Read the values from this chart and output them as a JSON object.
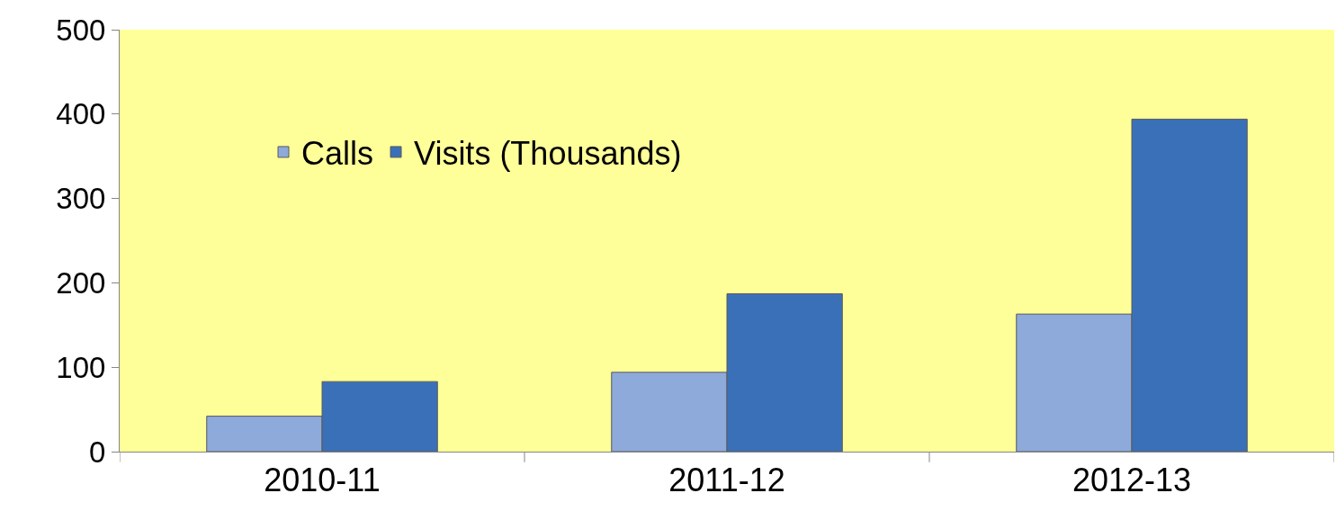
{
  "chart_data": {
    "type": "bar",
    "categories": [
      "2010-11",
      "2011-12",
      "2012-13"
    ],
    "series": [
      {
        "name": "Calls",
        "color": "#8eaadb",
        "values": [
          42,
          94,
          163
        ]
      },
      {
        "name": "Visits (Thousands)",
        "color": "#3a70b8",
        "values": [
          83,
          187,
          394
        ]
      }
    ],
    "ylim": [
      0,
      500
    ],
    "yticks": [
      0,
      100,
      200,
      300,
      400,
      500
    ],
    "grid": false,
    "legend": "top left"
  }
}
